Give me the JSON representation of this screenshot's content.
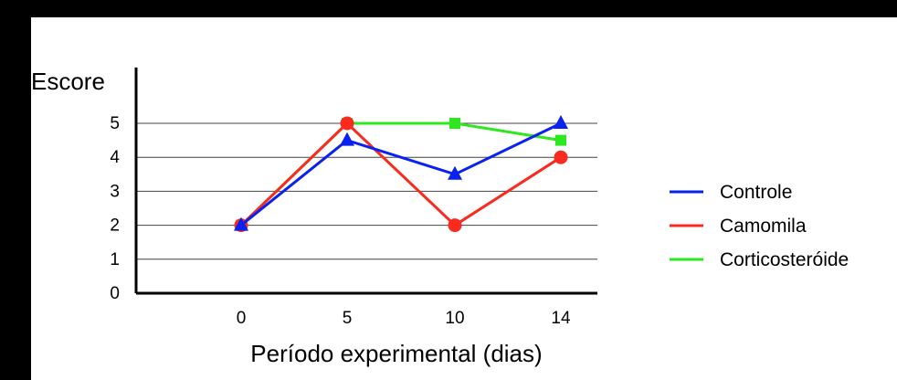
{
  "chart_data": {
    "type": "line",
    "title": "",
    "ylabel": "Escore",
    "xlabel": "Período experimental (dias)",
    "x": [
      "0",
      "5",
      "10",
      "14"
    ],
    "yticks": [
      "0",
      "1",
      "2",
      "3",
      "4",
      "5"
    ],
    "ylim": [
      0,
      5.3
    ],
    "grid": true,
    "legend_position": "right",
    "series": [
      {
        "name": "Controle",
        "values": [
          2,
          4.5,
          3.5,
          5
        ],
        "color": "#0a22f0",
        "marker": "triangle"
      },
      {
        "name": "Camomila",
        "values": [
          2,
          5,
          2,
          4
        ],
        "color": "#fb2a1f",
        "marker": "circle"
      },
      {
        "name": "Corticosteróide",
        "values": [
          2,
          5,
          5,
          4.5
        ],
        "color": "#2ee81f",
        "marker": "square"
      }
    ]
  }
}
